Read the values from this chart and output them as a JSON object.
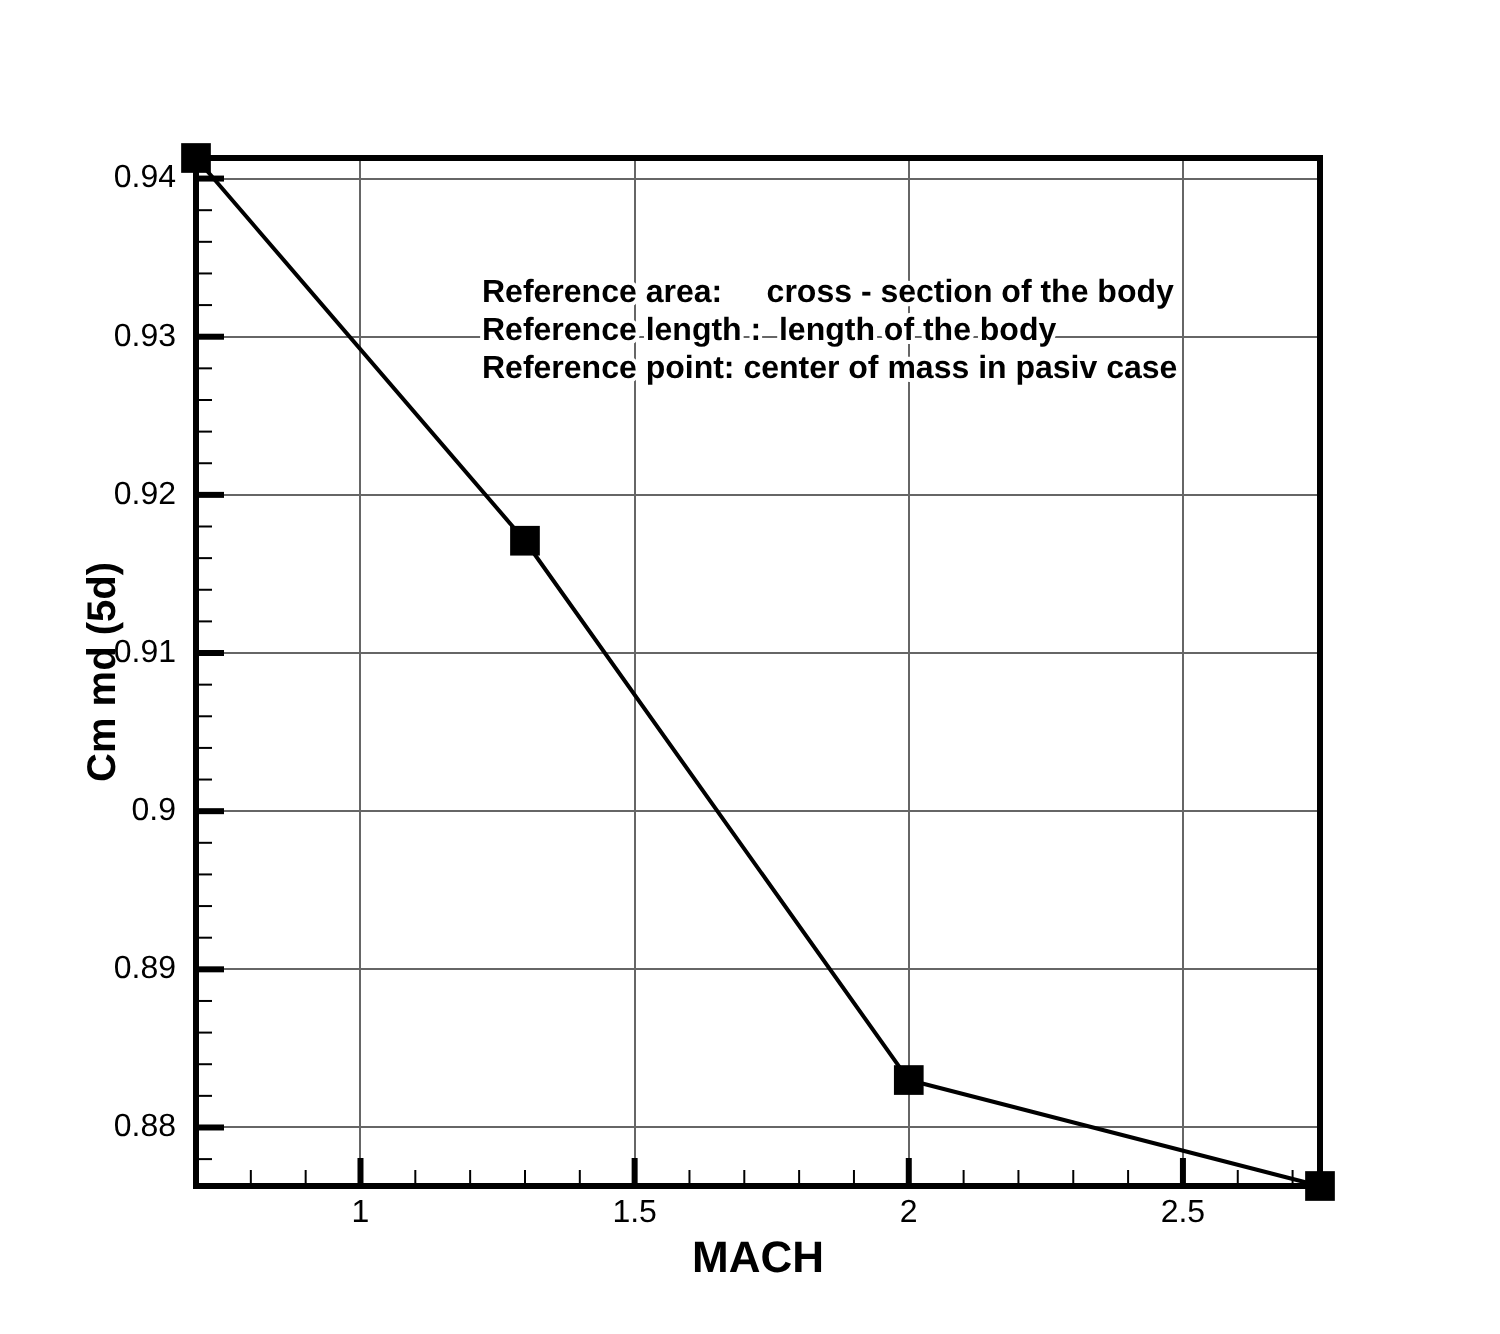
{
  "chart_data": {
    "type": "line",
    "xlabel": "MACH",
    "ylabel": "Cm md (5d)",
    "x": [
      0.7,
      1.3,
      2,
      2.75
    ],
    "series": [
      {
        "color": "#000000",
        "values": [
          0.9413,
          0.9171,
          0.883,
          0.8763
        ]
      }
    ],
    "xlim": [
      0.7,
      2.75
    ],
    "ylim": [
      0.8763,
      0.9413
    ],
    "xticks": [
      {
        "value": 0.8,
        "label": null
      },
      {
        "value": 0.9,
        "label": null
      },
      1,
      {
        "value": 1.1,
        "label": null
      },
      {
        "value": 1.2,
        "label": null
      },
      {
        "value": 1.3,
        "label": null
      },
      {
        "value": 1.4,
        "label": null
      },
      1.5,
      {
        "value": 1.6,
        "label": null
      },
      {
        "value": 1.7,
        "label": null
      },
      {
        "value": 1.8,
        "label": null
      },
      {
        "value": 1.9,
        "label": null
      },
      2,
      {
        "value": 2.1,
        "label": null
      },
      {
        "value": 2.2,
        "label": null
      },
      {
        "value": 2.3,
        "label": null
      },
      {
        "value": 2.4,
        "label": null
      },
      2.5,
      {
        "value": 2.6,
        "label": null
      },
      {
        "value": 2.7,
        "label": null
      }
    ],
    "yticks": [
      {
        "value": 0.878,
        "label": null
      },
      0.88,
      {
        "value": 0.882,
        "label": null
      },
      {
        "value": 0.884,
        "label": null
      },
      {
        "value": 0.886,
        "label": null
      },
      {
        "value": 0.888,
        "label": null
      },
      0.89,
      {
        "value": 0.892,
        "label": null
      },
      {
        "value": 0.894,
        "label": null
      },
      {
        "value": 0.896,
        "label": null
      },
      {
        "value": 0.898,
        "label": null
      },
      0.9,
      {
        "value": 0.902,
        "label": null
      },
      {
        "value": 0.904,
        "label": null
      },
      {
        "value": 0.906,
        "label": null
      },
      {
        "value": 0.908,
        "label": null
      },
      0.91,
      {
        "value": 0.912,
        "label": null
      },
      {
        "value": 0.914,
        "label": null
      },
      {
        "value": 0.916,
        "label": null
      },
      {
        "value": 0.918,
        "label": null
      },
      0.92,
      {
        "value": 0.922,
        "label": null
      },
      {
        "value": 0.924,
        "label": null
      },
      {
        "value": 0.926,
        "label": null
      },
      {
        "value": 0.928,
        "label": null
      },
      0.93,
      {
        "value": 0.932,
        "label": null
      },
      {
        "value": 0.934,
        "label": null
      },
      {
        "value": 0.936,
        "label": null
      },
      {
        "value": 0.938,
        "label": null
      },
      0.94
    ],
    "grid": true,
    "legend": false,
    "marker": "square",
    "line_style": "solid",
    "annotations": [
      "Reference area:     cross - section of the body",
      "Reference length :  length of the body",
      "Reference point: center of mass in pasiv case"
    ]
  }
}
